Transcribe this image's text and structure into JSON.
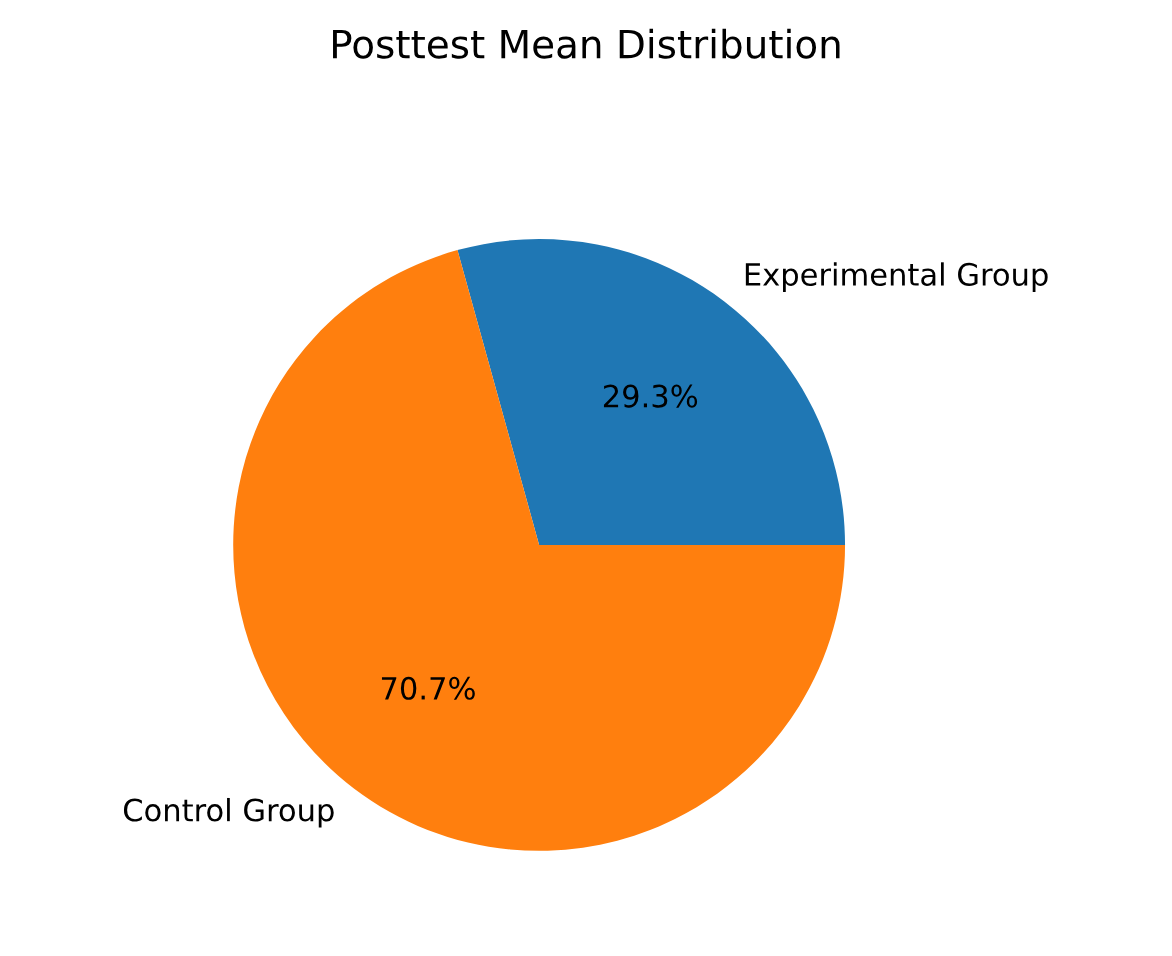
{
  "chart_data": {
    "type": "pie",
    "title": "Posttest Mean Distribution",
    "categories": [
      "Experimental Group",
      "Control Group"
    ],
    "values": [
      29.3,
      70.7
    ],
    "colors": [
      "#1f77b4",
      "#ff7f0e"
    ],
    "value_labels": [
      "29.3%",
      "70.7%"
    ]
  }
}
